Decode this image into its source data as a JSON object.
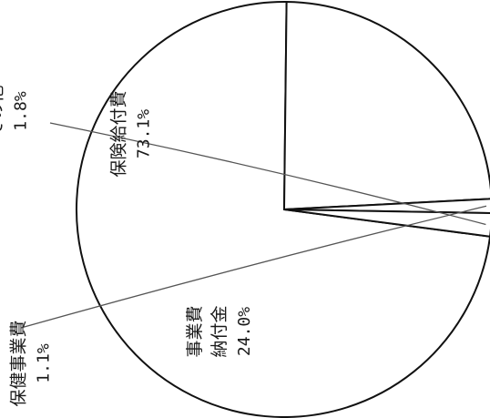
{
  "chart_data": {
    "type": "pie",
    "title": "",
    "slices": [
      {
        "label_lines": [
          "保険給付費"
        ],
        "value": 73.1,
        "value_label": "73.1%"
      },
      {
        "label_lines": [
          "事業費",
          "納付金"
        ],
        "value": 24.0,
        "value_label": "24.0%"
      },
      {
        "label_lines": [
          "保健事業費"
        ],
        "value": 1.1,
        "value_label": "1.1%"
      },
      {
        "label_lines": [
          "その他"
        ],
        "value": 1.8,
        "value_label": "1.8%"
      }
    ],
    "colors": {
      "fill": "#ffffff",
      "stroke": "#111111"
    }
  }
}
